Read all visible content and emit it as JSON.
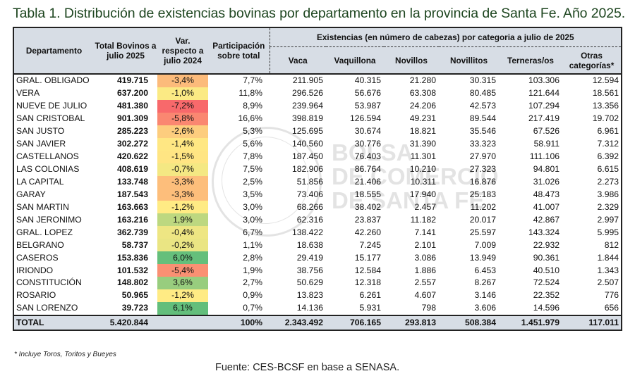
{
  "title": "Tabla 1. Distribución de existencias bovinas por departamento en la provincia de Santa Fe. Año 2025.",
  "header": {
    "departamento": "Departamento",
    "total": "Total Bovinos a julio 2025",
    "var": "Var. respecto a julio 2024",
    "part": "Participación sobre total",
    "group": "Existencias (en número de cabezas) por categoria a julio de 2025",
    "categories": [
      "Vaca",
      "Vaquillona",
      "Novillos",
      "Novillitos",
      "Terneras/os",
      "Otras categorías*"
    ]
  },
  "var_color_scale": {
    "min": "#f8696b",
    "mid": "#ffeb84",
    "max": "#63be7b"
  },
  "rows": [
    {
      "dep": "GRAL. OBLIGADO",
      "total": "419.715",
      "var": "-3,4%",
      "part": "7,7%",
      "cats": [
        "211.905",
        "40.315",
        "21.280",
        "30.315",
        "103.306",
        "12.594"
      ]
    },
    {
      "dep": "VERA",
      "total": "637.200",
      "var": "-1,0%",
      "part": "11,8%",
      "cats": [
        "296.526",
        "56.676",
        "63.308",
        "80.485",
        "121.644",
        "18.561"
      ]
    },
    {
      "dep": "NUEVE DE JULIO",
      "total": "481.380",
      "var": "-7,2%",
      "part": "8,9%",
      "cats": [
        "239.964",
        "53.987",
        "24.206",
        "42.573",
        "107.294",
        "13.356"
      ]
    },
    {
      "dep": "SAN CRISTOBAL",
      "total": "901.309",
      "var": "-5,8%",
      "part": "16,6%",
      "cats": [
        "398.819",
        "126.594",
        "49.231",
        "89.544",
        "217.419",
        "19.702"
      ]
    },
    {
      "dep": "SAN JUSTO",
      "total": "285.223",
      "var": "-2,6%",
      "part": "5,3%",
      "cats": [
        "125.695",
        "30.674",
        "18.821",
        "35.546",
        "67.526",
        "6.961"
      ]
    },
    {
      "dep": "SAN JAVIER",
      "total": "302.272",
      "var": "-1,4%",
      "part": "5,6%",
      "cats": [
        "140.560",
        "30.776",
        "31.390",
        "33.323",
        "58.911",
        "7.312"
      ]
    },
    {
      "dep": "CASTELLANOS",
      "total": "420.622",
      "var": "-1,5%",
      "part": "7,8%",
      "cats": [
        "187.450",
        "76.403",
        "11.301",
        "27.970",
        "111.106",
        "6.392"
      ]
    },
    {
      "dep": "LAS COLONIAS",
      "total": "408.619",
      "var": "-0,7%",
      "part": "7,5%",
      "cats": [
        "182.906",
        "86.764",
        "10.210",
        "27.323",
        "94.801",
        "6.615"
      ]
    },
    {
      "dep": "LA CAPITAL",
      "total": "133.748",
      "var": "-3,3%",
      "part": "2,5%",
      "cats": [
        "51.856",
        "21.406",
        "10.311",
        "16.876",
        "31.026",
        "2.273"
      ]
    },
    {
      "dep": "GARAY",
      "total": "187.543",
      "var": "-3,3%",
      "part": "3,5%",
      "cats": [
        "73.406",
        "18.555",
        "17.940",
        "25.183",
        "48.473",
        "3.986"
      ]
    },
    {
      "dep": "SAN MARTIN",
      "total": "163.663",
      "var": "-1,2%",
      "part": "3,0%",
      "cats": [
        "68.266",
        "38.402",
        "2.457",
        "11.202",
        "41.007",
        "2.329"
      ]
    },
    {
      "dep": "SAN JERONIMO",
      "total": "163.216",
      "var": "1,9%",
      "part": "3,0%",
      "cats": [
        "62.316",
        "23.837",
        "11.182",
        "20.017",
        "42.867",
        "2.997"
      ]
    },
    {
      "dep": "GRAL. LOPEZ",
      "total": "362.739",
      "var": "-0,4%",
      "part": "6,7%",
      "cats": [
        "138.422",
        "42.260",
        "7.141",
        "25.597",
        "143.324",
        "5.995"
      ]
    },
    {
      "dep": "BELGRANO",
      "total": "58.737",
      "var": "-0,2%",
      "part": "1,1%",
      "cats": [
        "18.638",
        "7.245",
        "2.101",
        "7.009",
        "22.932",
        "812"
      ]
    },
    {
      "dep": "CASEROS",
      "total": "153.836",
      "var": "6,0%",
      "part": "2,8%",
      "cats": [
        "29.419",
        "15.177",
        "3.086",
        "13.949",
        "90.361",
        "1.844"
      ]
    },
    {
      "dep": "IRIONDO",
      "total": "101.532",
      "var": "-5,4%",
      "part": "1,9%",
      "cats": [
        "38.756",
        "12.584",
        "1.886",
        "6.453",
        "40.510",
        "1.343"
      ]
    },
    {
      "dep": "CONSTITUCIÓN",
      "total": "148.802",
      "var": "3,6%",
      "part": "2,7%",
      "cats": [
        "50.629",
        "12.318",
        "2.557",
        "8.267",
        "72.524",
        "2.507"
      ]
    },
    {
      "dep": "ROSARIO",
      "total": "50.965",
      "var": "-1,2%",
      "part": "0,9%",
      "cats": [
        "13.823",
        "6.261",
        "4.607",
        "3.146",
        "22.352",
        "776"
      ]
    },
    {
      "dep": "SAN LORENZO",
      "total": "39.723",
      "var": "6,1%",
      "part": "0,7%",
      "cats": [
        "14.136",
        "5.931",
        "798",
        "3.606",
        "14.596",
        "656"
      ]
    }
  ],
  "total_row": {
    "dep": "TOTAL",
    "total": "5.420.844",
    "var": "",
    "part": "100%",
    "cats": [
      "2.343.492",
      "706.165",
      "293.813",
      "508.384",
      "1.451.979",
      "117.011"
    ]
  },
  "footnote": "* Incluye Toros, Toritos y Bueyes",
  "source": "Fuente:  CES-BCSF en base a SENASA.",
  "watermark": "BOLSA DE COMERCIO DE SANTA FE"
}
